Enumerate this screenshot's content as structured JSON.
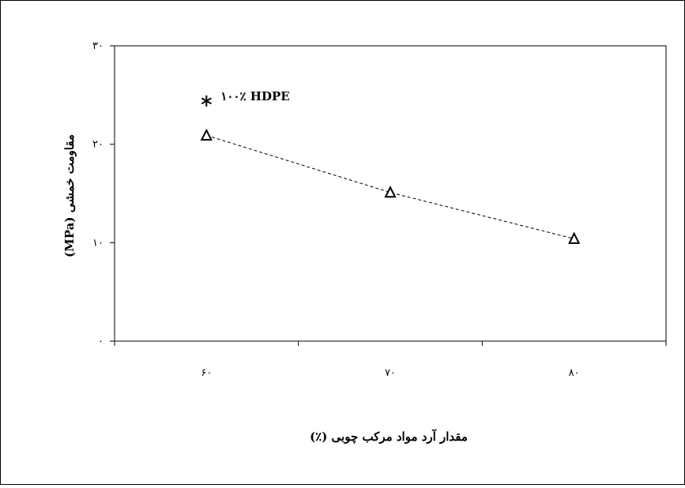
{
  "chart_data": {
    "type": "scatter",
    "title": "",
    "xlabel": "مقدار آرد مواد مرکب چوبی (٪)",
    "ylabel": "مقاومت خمشی (MPa)",
    "categories": [
      "۶۰",
      "۷۰",
      "۸۰"
    ],
    "ylim": [
      0,
      30
    ],
    "yticks": [
      0,
      10,
      20,
      30
    ],
    "ytick_labels": [
      "۰",
      "۱۰",
      "۲۰",
      "۳۰"
    ],
    "grid": false,
    "legend": "none",
    "series": [
      {
        "marker": "triangle",
        "line": "dashed",
        "values": [
          20.9,
          15.1,
          10.4
        ]
      }
    ],
    "reference_point": {
      "marker": "asterisk",
      "category": "۶۰",
      "value": 24.4,
      "label": "۱۰۰٪ HDPE"
    }
  }
}
